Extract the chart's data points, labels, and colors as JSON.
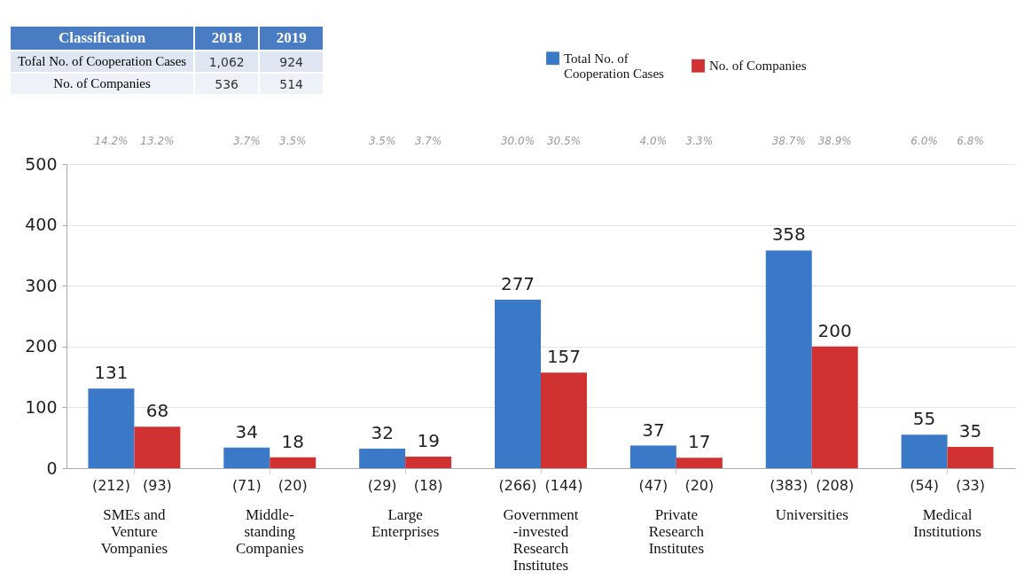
{
  "chart_data": {
    "type": "bar",
    "categories": [
      "SMEs and\nVenture\nVompanies",
      "Middle-\nstanding\nCompanies",
      "Large\nEnterprises",
      "Government\n-invested\nResearch\nInstitutes",
      "Private\nResearch\nInstitutes",
      "Universities",
      "Medical\nInstitutions"
    ],
    "series": [
      {
        "name": "Total No. of\nCooperation Cases",
        "color": "#3a78c8",
        "values": [
          131,
          34,
          32,
          277,
          37,
          358,
          55
        ]
      },
      {
        "name": "No. of Companies",
        "color": "#d03232",
        "values": [
          68,
          18,
          19,
          157,
          17,
          200,
          35
        ]
      }
    ],
    "ylim": [
      0,
      500
    ],
    "yticks": [
      0,
      100,
      200,
      300,
      400,
      500
    ],
    "grid": "y",
    "legend": "top",
    "data_labels": true,
    "annotations": [
      "Classification",
      "2018",
      "2019",
      "Tofal No. of Cooperation Cases",
      "1,062",
      "924",
      "No. of Companies",
      "536",
      "514",
      "14.2%",
      "13.2%",
      "(212)",
      "(93)",
      "3.7%",
      "3.5%",
      "(71)",
      "(20)",
      "3.5%",
      "3.7%",
      "(29)",
      "(18)",
      "30.0%",
      "30.5%",
      "(266)",
      "(144)",
      "4.0%",
      "3.3%",
      "(47)",
      "(20)",
      "38.7%",
      "38.9%",
      "(383)",
      "(208)",
      "6.0%",
      "6.8%",
      "(54)",
      "(33)"
    ]
  }
}
